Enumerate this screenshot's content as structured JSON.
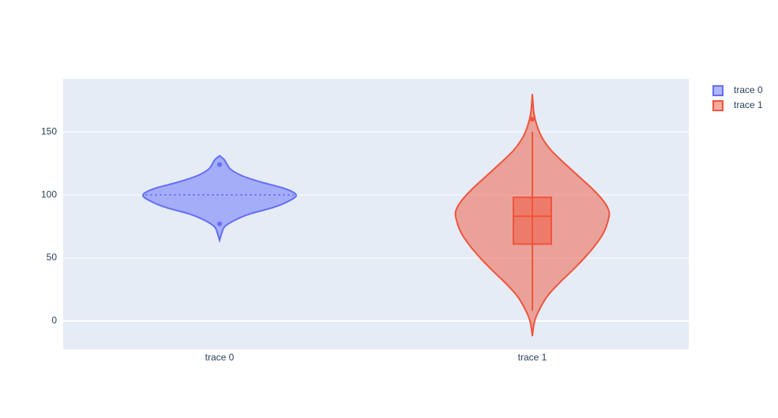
{
  "chart_data": {
    "type": "violin",
    "categories": [
      "trace 0",
      "trace 1"
    ],
    "ylim": [
      -22.5,
      192
    ],
    "yticks": [
      0,
      50,
      100,
      150
    ],
    "grid": true,
    "series": [
      {
        "name": "trace 0",
        "color": "#636efa",
        "meanline": true,
        "box": false,
        "mean": 100,
        "kde_y": [
          64,
          70,
          75,
          80,
          85,
          90,
          95,
          100,
          105,
          110,
          115,
          120,
          124,
          128,
          131
        ],
        "kde_width": [
          0,
          0.03,
          0.07,
          0.2,
          0.4,
          0.7,
          0.9,
          1.0,
          0.85,
          0.55,
          0.3,
          0.15,
          0.1,
          0.06,
          0
        ],
        "outliers": [
          124,
          77
        ]
      },
      {
        "name": "trace 1",
        "color": "#ef553b",
        "meanline": false,
        "box": true,
        "q1": 61,
        "median": 83,
        "q3": 98,
        "lower_fence": 8,
        "upper_fence": 150,
        "kde_y": [
          -12,
          0,
          10,
          20,
          30,
          40,
          50,
          60,
          70,
          80,
          87,
          95,
          105,
          115,
          125,
          135,
          145,
          155,
          165,
          180
        ],
        "kde_width": [
          0,
          0.03,
          0.1,
          0.2,
          0.35,
          0.52,
          0.68,
          0.82,
          0.93,
          0.99,
          1.0,
          0.93,
          0.78,
          0.6,
          0.42,
          0.25,
          0.13,
          0.06,
          0.02,
          0
        ],
        "outliers": [
          160
        ]
      }
    ]
  }
}
